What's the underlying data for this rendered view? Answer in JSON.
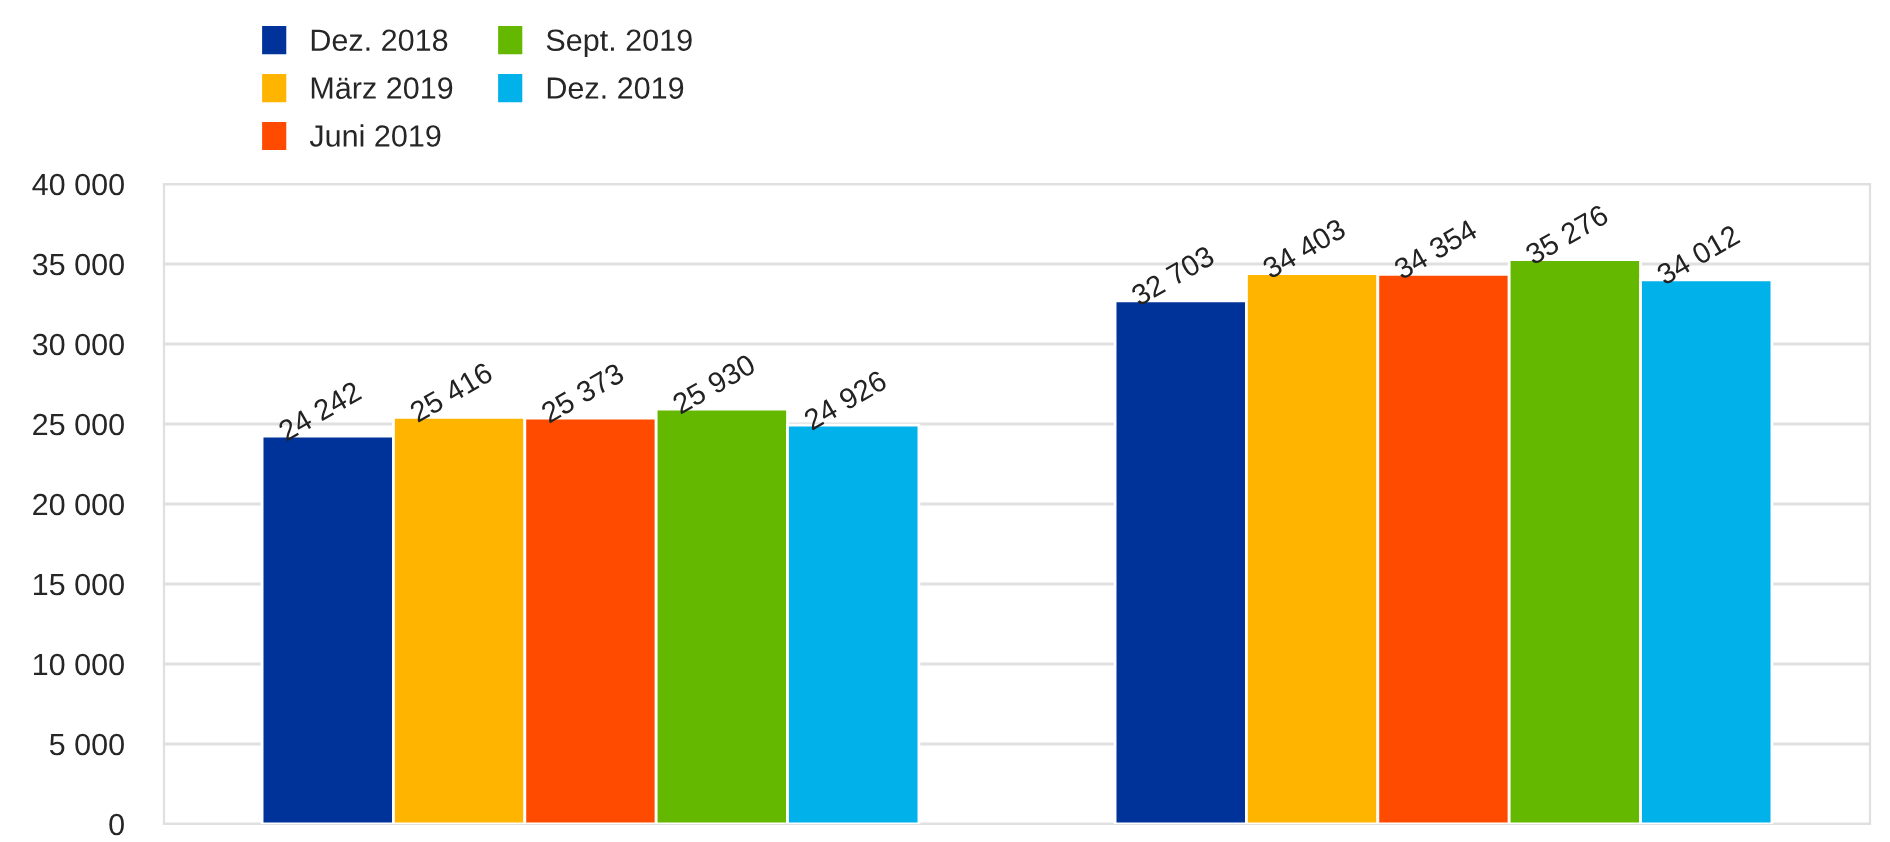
{
  "chart_data": {
    "type": "bar",
    "categories": [
      null,
      null
    ],
    "series": [
      {
        "name": "Dez. 2018",
        "color": "#003399",
        "values": [
          24242,
          32703
        ],
        "value_labels": [
          "24 242",
          "32 703"
        ]
      },
      {
        "name": "März 2019",
        "color": "#ffb400",
        "values": [
          25416,
          34403
        ],
        "value_labels": [
          "25 416",
          "34 403"
        ]
      },
      {
        "name": "Juni 2019",
        "color": "#ff4b00",
        "values": [
          25373,
          34354
        ],
        "value_labels": [
          "25 373",
          "34 354"
        ]
      },
      {
        "name": "Sept. 2019",
        "color": "#65b800",
        "values": [
          25930,
          35276
        ],
        "value_labels": [
          "25 930",
          "35 276"
        ]
      },
      {
        "name": "Dez. 2019",
        "color": "#00b1ea",
        "values": [
          24926,
          34012
        ],
        "value_labels": [
          "24 926",
          "34 012"
        ]
      }
    ],
    "ylim": [
      0,
      40000
    ],
    "yticks": [
      {
        "value": 0,
        "label": "0"
      },
      {
        "value": 5000,
        "label": "5 000"
      },
      {
        "value": 10000,
        "label": "10 000"
      },
      {
        "value": 15000,
        "label": "15 000"
      },
      {
        "value": 20000,
        "label": "20 000"
      },
      {
        "value": 25000,
        "label": "25 000"
      },
      {
        "value": 30000,
        "label": "30 000"
      },
      {
        "value": 35000,
        "label": "35 000"
      },
      {
        "value": 40000,
        "label": "40 000"
      }
    ],
    "grid": "y",
    "legend": "top left"
  }
}
